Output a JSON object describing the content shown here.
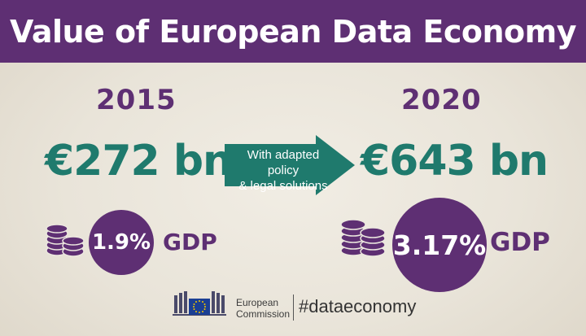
{
  "title": "Value of European Data Economy",
  "left": {
    "year": "2015",
    "value": "€272 bn",
    "gdp_share": "1.9%",
    "gdp_label": "GDP"
  },
  "right": {
    "year": "2020",
    "value": "€643 bn",
    "gdp_share": "3.17%",
    "gdp_label": "GDP"
  },
  "arrow": {
    "line1": "With adapted policy",
    "line2": "& legal solutions"
  },
  "footer": {
    "org_line1": "European",
    "org_line2": "Commission",
    "hashtag": "#dataeconomy"
  },
  "icons": {
    "coins": "coin-stack-icon",
    "logo": "european-commission-logo"
  },
  "colors": {
    "purple": "#5e2f73",
    "teal": "#1f7a6d",
    "background": "#ece8df"
  }
}
